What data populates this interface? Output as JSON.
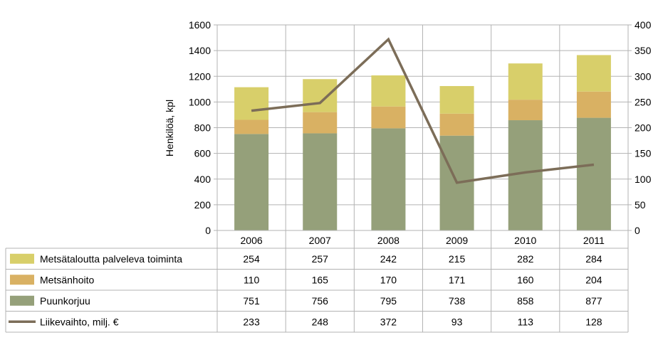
{
  "chart_data": {
    "type": "bar",
    "stacked": true,
    "categories": [
      "2006",
      "2007",
      "2008",
      "2009",
      "2010",
      "2011"
    ],
    "ylabel": "Henkilöä, kpl",
    "ylim": [
      0,
      1600
    ],
    "yticks": [
      0,
      200,
      400,
      600,
      800,
      1000,
      1200,
      1400,
      1600
    ],
    "y2lim": [
      0,
      400
    ],
    "y2ticks": [
      0,
      50,
      100,
      150,
      200,
      250,
      300,
      350,
      400
    ],
    "grid": true,
    "legend": "data-table-left",
    "series": [
      {
        "name": "Metsätaloutta palveleva toiminta",
        "kind": "bar",
        "axis": "left",
        "color": "#d8cf6a",
        "values": [
          254,
          257,
          242,
          215,
          282,
          284
        ]
      },
      {
        "name": "Metsänhoito",
        "kind": "bar",
        "axis": "left",
        "color": "#d9b163",
        "values": [
          110,
          165,
          170,
          171,
          160,
          204
        ]
      },
      {
        "name": "Puunkorjuu",
        "kind": "bar",
        "axis": "left",
        "color": "#95a07a",
        "values": [
          751,
          756,
          795,
          738,
          858,
          877
        ]
      },
      {
        "name": "Liikevaihto, milj. €",
        "kind": "line",
        "axis": "right",
        "color": "#7c6d58",
        "values": [
          233,
          248,
          372,
          93,
          113,
          128
        ]
      }
    ]
  }
}
